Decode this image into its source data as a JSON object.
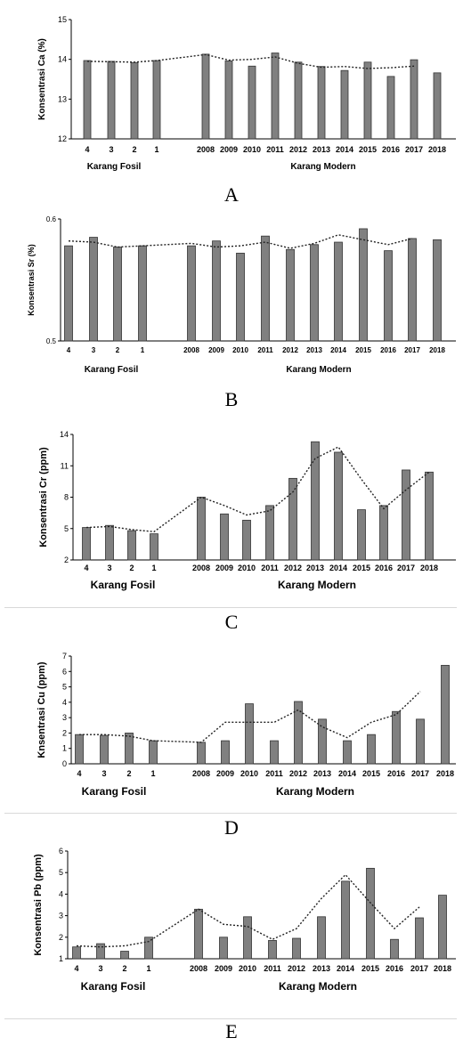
{
  "figure": {
    "letters": [
      "A",
      "B",
      "C",
      "D",
      "E"
    ]
  },
  "chart_data": [
    {
      "type": "bar",
      "panel_letter": "A",
      "ylabel": "Konsentrasi Ca (%)",
      "ylim": [
        12,
        15
      ],
      "yticks": [
        "12",
        "13",
        "14",
        "15"
      ],
      "categories": [
        "4",
        "3",
        "2",
        "1",
        "2008",
        "2009",
        "2010",
        "2011",
        "2012",
        "2013",
        "2014",
        "2015",
        "2016",
        "2017",
        "2018"
      ],
      "values": [
        13.97,
        13.95,
        13.92,
        13.97,
        14.13,
        13.96,
        13.83,
        14.16,
        13.93,
        13.82,
        13.72,
        13.93,
        13.57,
        13.99,
        13.66
      ],
      "trend": [
        13.95,
        13.94,
        13.93,
        13.97,
        14.12,
        13.98,
        14.0,
        14.06,
        13.9,
        13.8,
        13.82,
        13.77,
        13.79,
        13.83,
        null
      ],
      "group_labels": [
        "Karang Fosil",
        "Karang Modern"
      ],
      "grid": false
    },
    {
      "type": "bar",
      "panel_letter": "B",
      "ylabel": "Konsentrasi Sr (%)",
      "ylim": [
        0.5,
        0.6
      ],
      "yticks": [
        "0.5",
        "0.6"
      ],
      "categories": [
        "4",
        "3",
        "2",
        "1",
        "2008",
        "2009",
        "2010",
        "2011",
        "2012",
        "2013",
        "2014",
        "2015",
        "2016",
        "2017",
        "2018"
      ],
      "values": [
        0.578,
        0.585,
        0.577,
        0.578,
        0.578,
        0.582,
        0.572,
        0.586,
        0.575,
        0.579,
        0.581,
        0.592,
        0.574,
        0.584,
        0.583
      ],
      "trend": [
        0.582,
        0.581,
        0.577,
        0.578,
        0.58,
        0.577,
        0.578,
        0.581,
        0.576,
        0.58,
        0.587,
        0.583,
        0.579,
        0.584,
        null
      ],
      "group_labels": [
        "Karang Fosil",
        "Karang Modern"
      ],
      "grid": false
    },
    {
      "type": "bar",
      "panel_letter": "C",
      "ylabel": "Konsentrasi Cr (ppm)",
      "ylim": [
        2,
        14
      ],
      "yticks": [
        "2",
        "5",
        "8",
        "11",
        "14"
      ],
      "categories": [
        "4",
        "3",
        "2",
        "1",
        "2008",
        "2009",
        "2010",
        "2011",
        "2012",
        "2013",
        "2014",
        "2015",
        "2016",
        "2017",
        "2018"
      ],
      "values": [
        5.1,
        5.3,
        4.8,
        4.5,
        8.0,
        6.4,
        5.8,
        7.2,
        9.8,
        13.3,
        12.3,
        6.8,
        7.2,
        10.6,
        10.4
      ],
      "trend": [
        5.1,
        5.2,
        4.9,
        4.7,
        8.0,
        7.2,
        6.3,
        6.7,
        8.5,
        11.7,
        12.8,
        9.7,
        6.9,
        8.7,
        10.4
      ],
      "group_labels": [
        "Karang Fosil",
        "Karang Modern"
      ],
      "grid": false
    },
    {
      "type": "bar",
      "panel_letter": "D",
      "ylabel": "Knsentrasi Cu (ppm)",
      "ylim": [
        0,
        7
      ],
      "yticks": [
        "0",
        "1",
        "2",
        "3",
        "4",
        "5",
        "6",
        "7"
      ],
      "categories": [
        "4",
        "3",
        "2",
        "1",
        "2008",
        "2009",
        "2010",
        "2011",
        "2012",
        "2013",
        "2014",
        "2015",
        "2016",
        "2017",
        "2018"
      ],
      "values": [
        1.9,
        1.85,
        2.0,
        1.5,
        1.4,
        1.5,
        3.9,
        1.5,
        4.05,
        2.9,
        1.5,
        1.9,
        3.4,
        2.9,
        6.4
      ],
      "trend": [
        1.9,
        1.9,
        1.8,
        1.5,
        1.4,
        2.7,
        2.7,
        2.7,
        3.5,
        2.4,
        1.7,
        2.7,
        3.2,
        4.7,
        null
      ],
      "group_labels": [
        "Karang Fosil",
        "Karang Modern"
      ],
      "grid": false
    },
    {
      "type": "bar",
      "panel_letter": "E",
      "ylabel": "Konsentrasi Pb (ppm)",
      "ylim": [
        1,
        6
      ],
      "yticks": [
        "1",
        "2",
        "3",
        "4",
        "5",
        "6"
      ],
      "categories": [
        "4",
        "3",
        "2",
        "1",
        "2008",
        "2009",
        "2010",
        "2011",
        "2012",
        "2013",
        "2014",
        "2015",
        "2016",
        "2017",
        "2018"
      ],
      "values": [
        1.55,
        1.7,
        1.35,
        2.0,
        3.3,
        2.0,
        2.95,
        1.85,
        1.95,
        2.95,
        4.6,
        5.2,
        1.9,
        2.9,
        3.95
      ],
      "trend": [
        1.6,
        1.55,
        1.6,
        1.8,
        3.3,
        2.6,
        2.5,
        1.9,
        2.4,
        3.8,
        4.9,
        3.6,
        2.4,
        3.4,
        null
      ],
      "group_labels": [
        "Karang Fosil",
        "Karang Modern"
      ],
      "grid": false
    }
  ]
}
